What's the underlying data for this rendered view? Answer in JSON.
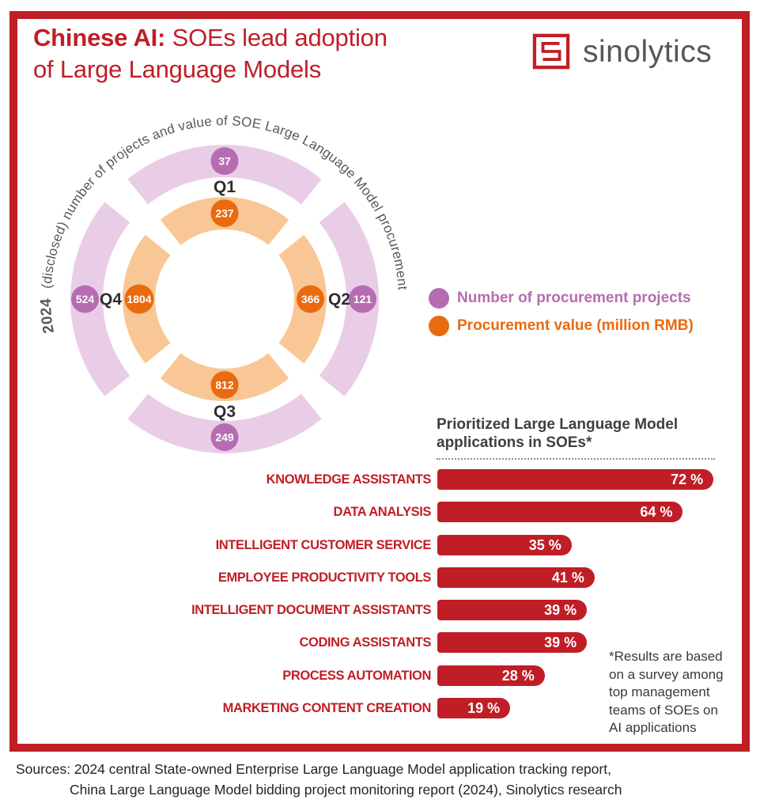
{
  "colors": {
    "red": "#c01e26",
    "purple": "#b76cb1",
    "purple_light": "#e9cde7",
    "orange": "#ea6a0f",
    "orange_light": "#f8c795"
  },
  "header": {
    "title_bold": "Chinese AI:",
    "title_regular": " SOEs lead adoption",
    "title_line2": "of Large Language Models",
    "brand": "sinolytics"
  },
  "ring_chart": {
    "curved_title_bold": "2024",
    "curved_title_rest": "(disclosed) number of projects and value of SOE Large Language Model procurement",
    "quarters": [
      {
        "label": "Q1",
        "projects": "37",
        "value": "237"
      },
      {
        "label": "Q2",
        "projects": "121",
        "value": "366"
      },
      {
        "label": "Q3",
        "projects": "249",
        "value": "812"
      },
      {
        "label": "Q4",
        "projects": "524",
        "value": "1804"
      }
    ],
    "legend": [
      {
        "label": "Number of procurement projects"
      },
      {
        "label": "Procurement value (million RMB)"
      }
    ]
  },
  "bar_chart": {
    "heading_line1": "Prioritized Large Language Model",
    "heading_line2": "applications in SOEs*",
    "bars": [
      {
        "label": "KNOWLEDGE ASSISTANTS",
        "value": 72,
        "value_label": "72 %"
      },
      {
        "label": "DATA ANALYSIS",
        "value": 64,
        "value_label": "64 %"
      },
      {
        "label": "INTELLIGENT CUSTOMER SERVICE",
        "value": 35,
        "value_label": "35 %"
      },
      {
        "label": "EMPLOYEE PRODUCTIVITY TOOLS",
        "value": 41,
        "value_label": "41 %"
      },
      {
        "label": "INTELLIGENT DOCUMENT ASSISTANTS",
        "value": 39,
        "value_label": "39 %"
      },
      {
        "label": "CODING ASSISTANTS",
        "value": 39,
        "value_label": "39 %"
      },
      {
        "label": "PROCESS AUTOMATION",
        "value": 28,
        "value_label": "28 %"
      },
      {
        "label": "MARKETING CONTENT CREATION",
        "value": 19,
        "value_label": "19 %"
      }
    ],
    "footnote_lines": [
      "*Results are based",
      "on a survey among",
      "top management",
      "teams of SOEs on",
      "AI applications"
    ]
  },
  "sources": {
    "line1": "Sources: 2024 central State-owned Enterprise Large Language Model application tracking report,",
    "line2": "China Large Language Model bidding project monitoring report (2024), Sinolytics research"
  },
  "chart_data": [
    {
      "type": "pie",
      "subtype": "concentric-quarter-rings-donut",
      "title": "2024 (disclosed) number of projects and value of SOE Large Language Model procurement",
      "categories": [
        "Q1",
        "Q2",
        "Q3",
        "Q4"
      ],
      "series": [
        {
          "name": "Number of procurement projects",
          "ring": "outer",
          "color": "#b76cb1",
          "values": [
            37,
            121,
            249,
            524
          ]
        },
        {
          "name": "Procurement value (million RMB)",
          "ring": "inner",
          "color": "#ea6a0f",
          "values": [
            237,
            366,
            812,
            1804
          ]
        }
      ],
      "legend_position": "right",
      "notes": "Each quarter occupies an equal 90-degree segment; badges show values"
    },
    {
      "type": "bar",
      "orientation": "horizontal",
      "title": "Prioritized Large Language Model applications in SOEs*",
      "categories": [
        "KNOWLEDGE ASSISTANTS",
        "DATA ANALYSIS",
        "INTELLIGENT CUSTOMER SERVICE",
        "EMPLOYEE PRODUCTIVITY TOOLS",
        "INTELLIGENT DOCUMENT ASSISTANTS",
        "CODING ASSISTANTS",
        "PROCESS AUTOMATION",
        "MARKETING CONTENT CREATION"
      ],
      "values": [
        72,
        64,
        35,
        41,
        39,
        39,
        28,
        19
      ],
      "unit": "%",
      "xlim": [
        0,
        100
      ],
      "bar_color": "#c01e26",
      "grid": false,
      "footnote": "*Results are based on a survey among top management teams of SOEs on AI applications"
    }
  ]
}
